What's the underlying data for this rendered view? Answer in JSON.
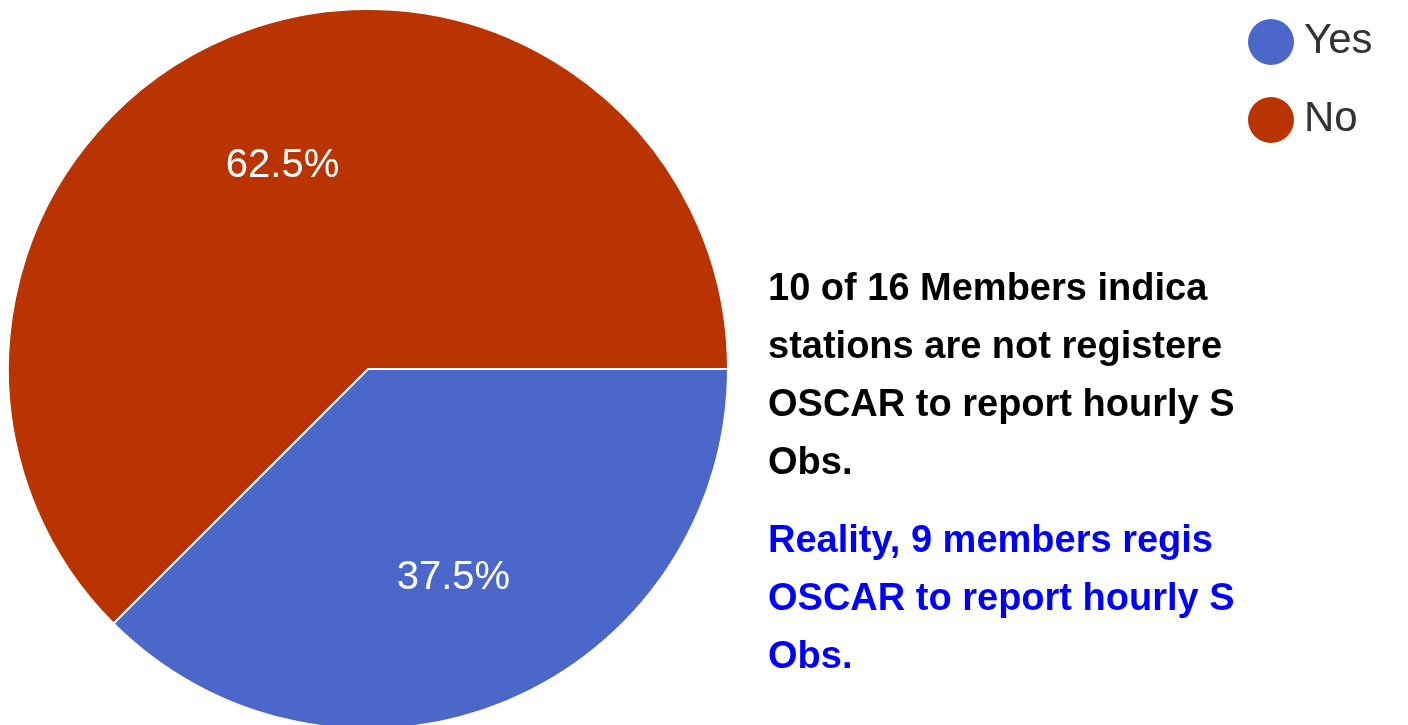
{
  "chart_data": {
    "type": "pie",
    "categories": [
      "Yes",
      "No"
    ],
    "values": [
      37.5,
      62.5
    ],
    "value_labels": [
      "37.5%",
      "62.5%"
    ],
    "colors": [
      "#4b67c9",
      "#b93400"
    ],
    "legend": "top right",
    "annotations": [
      "10 of 16 Members indica\nstations are not registere\nOSCAR to report hourly S\nObs.",
      "Reality, 9 members regis\nOSCAR to report hourly S\nObs."
    ]
  }
}
